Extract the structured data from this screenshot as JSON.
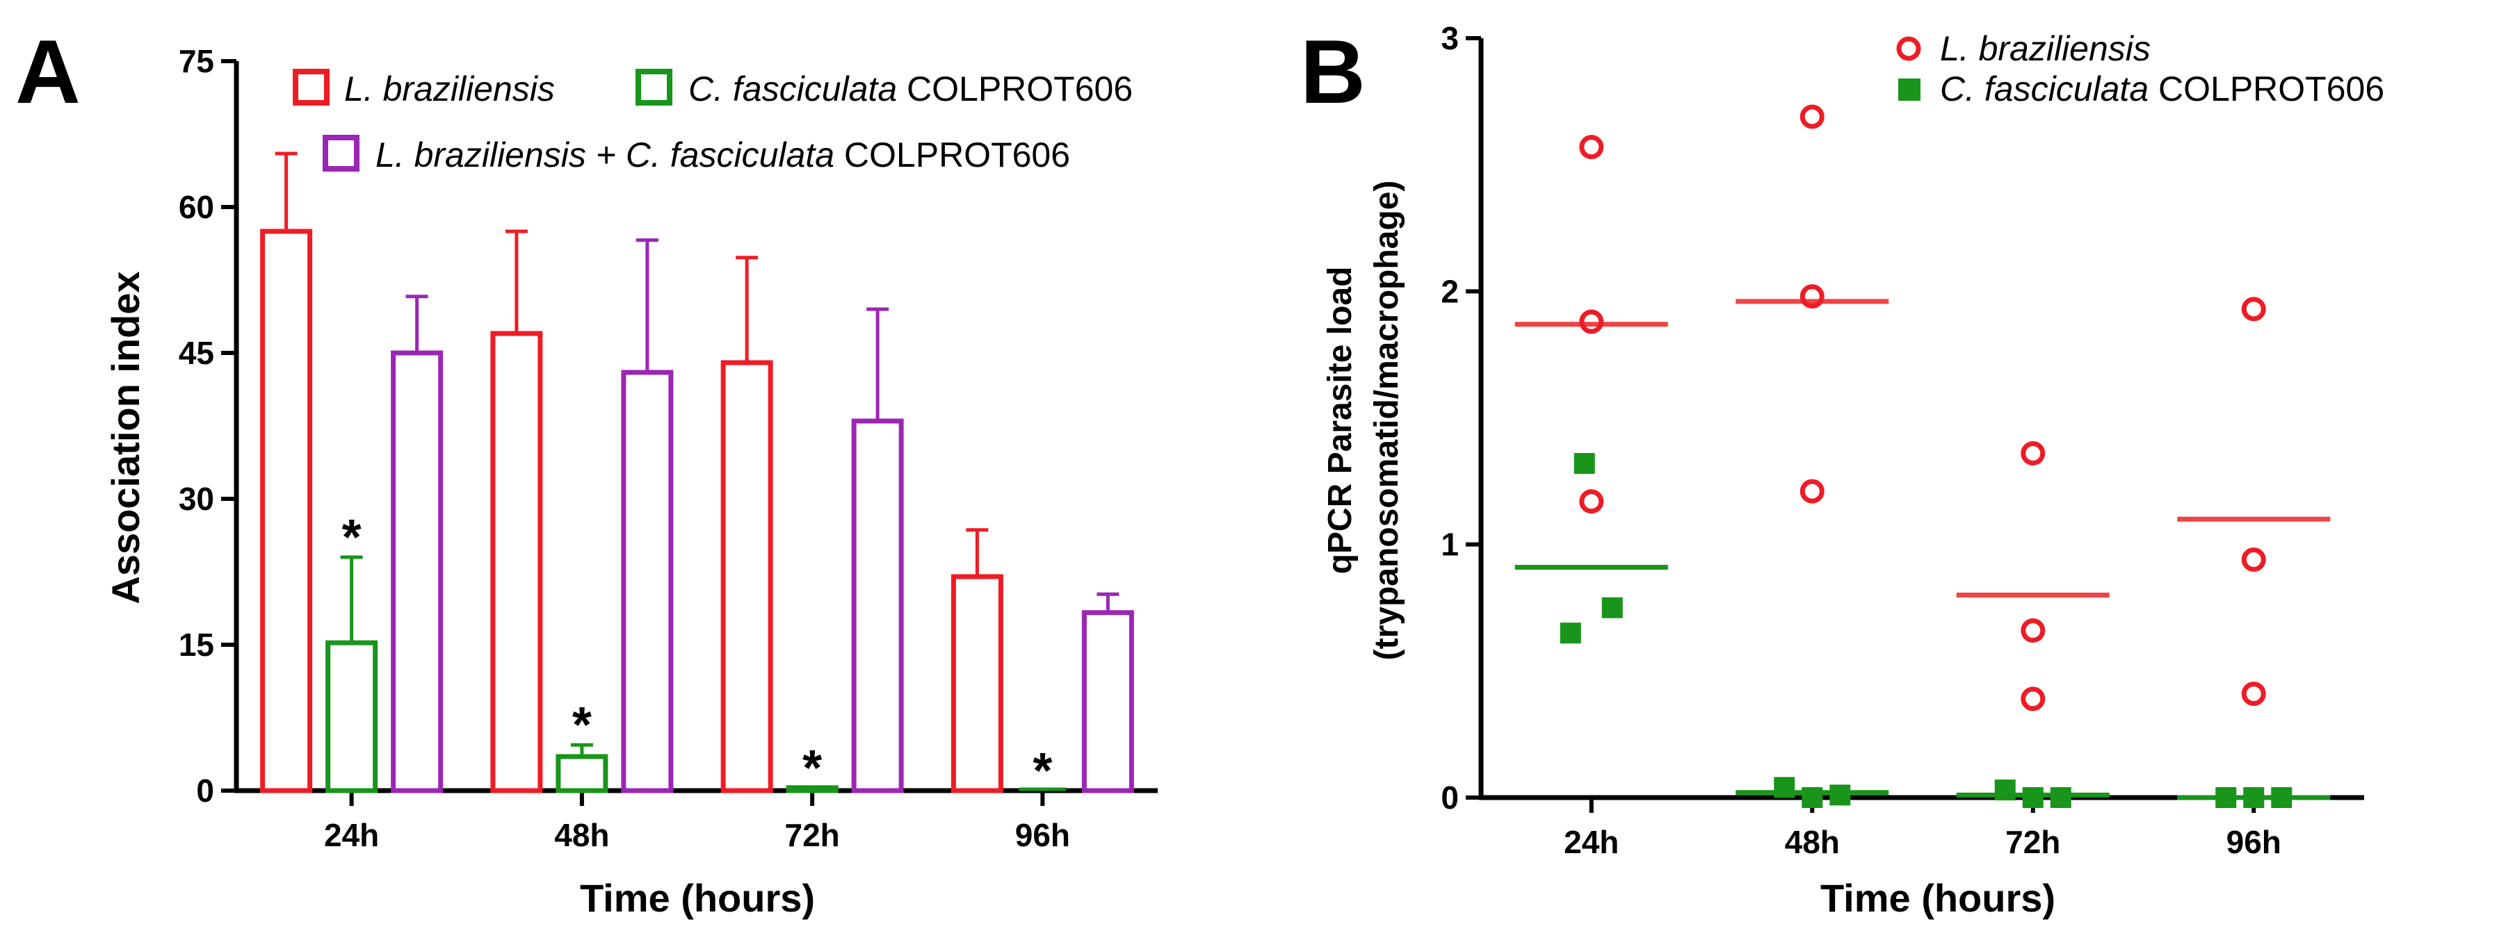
{
  "figure": {
    "panels": [
      "A",
      "B"
    ]
  },
  "chart_data": [
    {
      "panel": "A",
      "type": "bar",
      "title": "",
      "xlabel": "Time (hours)",
      "ylabel": "Association index",
      "ylim": [
        0,
        75
      ],
      "yticks": [
        "0",
        "15",
        "30",
        "45",
        "60",
        "75"
      ],
      "categories": [
        "24h",
        "48h",
        "72h",
        "96h"
      ],
      "series": [
        {
          "name_italic": "L. braziliensis",
          "name_plain": "",
          "color": "#ee1c25",
          "values": [
            57.5,
            47,
            44,
            22
          ],
          "errors": [
            8,
            10.5,
            10.8,
            4.8
          ]
        },
        {
          "name_italic": "C. fasciculata",
          "name_plain": " COLPROT606",
          "color": "#18951a",
          "values": [
            15.2,
            3.5,
            0.3,
            0
          ],
          "errors": [
            8.8,
            1.2,
            0,
            0
          ]
        },
        {
          "name_italic": "L. braziliensis + C. fasciculata",
          "name_plain": " COLPROT606",
          "color": "#9b26b6",
          "values": [
            45,
            43,
            38,
            18.3
          ],
          "errors": [
            5.8,
            13.6,
            11.5,
            1.9
          ]
        }
      ],
      "annotations": [
        "*",
        "*",
        "*",
        "*"
      ]
    },
    {
      "panel": "B",
      "type": "scatter",
      "title": "",
      "xlabel": "Time (hours)",
      "ylabel": "qPCR Parasite load",
      "ylabel2": "(trypanosomatid/macrophage)",
      "ylim": [
        0,
        3
      ],
      "yticks": [
        "0",
        "1",
        "2",
        "3"
      ],
      "categories": [
        "24h",
        "48h",
        "72h",
        "96h"
      ],
      "series": [
        {
          "name_italic": "L. braziliensis",
          "name_plain": "",
          "marker": "open-circle",
          "color": "#ee1c25",
          "mean_color": "#ef4444",
          "points": [
            [
              2.57,
              1.88,
              1.17
            ],
            [
              2.69,
              1.98,
              1.21
            ],
            [
              1.36,
              0.66,
              0.39
            ],
            [
              1.93,
              0.94,
              0.41
            ]
          ],
          "means": [
            1.87,
            1.96,
            0.8,
            1.1
          ]
        },
        {
          "name_italic": "C. fasciculata",
          "name_plain": " COLPROT606",
          "marker": "filled-square",
          "color": "#18951a",
          "mean_color": "#18951a",
          "points": [
            [
              1.32,
              0.75,
              0.65
            ],
            [
              0.04,
              0.0,
              0.01
            ],
            [
              0.03,
              0.0,
              0.0
            ],
            [
              0.0,
              0.0,
              0.0
            ]
          ],
          "means": [
            0.91,
            0.02,
            0.01,
            0.0
          ]
        }
      ]
    }
  ]
}
